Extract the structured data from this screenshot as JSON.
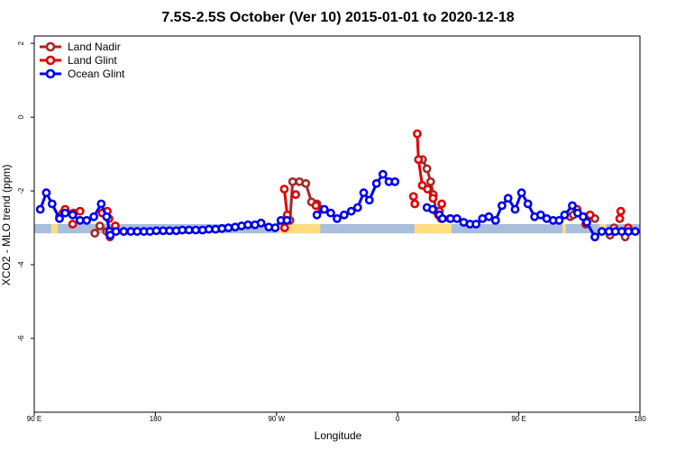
{
  "chart_data": {
    "type": "line",
    "title": "7.5S-2.5S October (Ver 10)   2015-01-01 to 2020-12-18",
    "xlabel": "Longitude",
    "ylabel": "XCO2 - MLO trend (ppm)",
    "xlim": [
      90,
      270
    ],
    "ylim": [
      -8.0,
      2.2
    ],
    "x_ticks": [
      {
        "value": 90,
        "label": "90 E"
      },
      {
        "value": 126,
        "label": "180"
      },
      {
        "value": 162,
        "label": "90 W"
      },
      {
        "value": 198,
        "label": "0"
      },
      {
        "value": 234,
        "label": "90 E"
      },
      {
        "value": 270,
        "label": "180"
      }
    ],
    "y_ticks": [
      {
        "value": 2,
        "label": "2"
      },
      {
        "value": 0,
        "label": "0"
      },
      {
        "value": -2,
        "label": "-2"
      },
      {
        "value": -4,
        "label": "-4"
      },
      {
        "value": -6,
        "label": "-6"
      }
    ],
    "legend_position": "top-left",
    "surface_band": {
      "y_top": -2.9,
      "y_bottom": -3.15,
      "ocean_color": "#a8bedb",
      "land_color": "#fedd83",
      "land_segments": [
        [
          95,
          97
        ],
        [
          162,
          175
        ],
        [
          203,
          214
        ],
        [
          247,
          248
        ],
        [
          258,
          260
        ]
      ]
    },
    "series": [
      {
        "name": "Land Nadir",
        "color": "#a52a2a",
        "segments": [
          [
            [
              97.5,
              -2.7
            ],
            [
              98.5,
              -2.6
            ]
          ],
          [
            [
              108,
              -3.15
            ],
            [
              109.5,
              -2.95
            ],
            [
              111.5,
              -3.1
            ],
            [
              112.5,
              -3.25
            ]
          ],
          [
            [
              166,
              -2.8
            ],
            [
              166.8,
              -1.75
            ]
          ],
          [
            [
              168.8,
              -1.75
            ],
            [
              170.7,
              -1.8
            ],
            [
              172.4,
              -2.3
            ],
            [
              174,
              -2.35
            ]
          ],
          [
            [
              205.4,
              -1.15
            ],
            [
              206.7,
              -1.4
            ],
            [
              207.8,
              -1.75
            ],
            [
              208.6,
              -2.1
            ],
            [
              209.4,
              -2.55
            ],
            [
              210.9,
              -2.75
            ],
            [
              213.5,
              -2.75
            ]
          ],
          [
            [
              249.3,
              -2.7
            ],
            [
              250.2,
              -2.65
            ]
          ],
          [
            [
              254.3,
              -2.7
            ],
            [
              256.6,
              -2.75
            ]
          ],
          [
            [
              261.1,
              -3.2
            ],
            [
              262.3,
              -3.0
            ]
          ],
          [
            [
              265.6,
              -3.25
            ],
            [
              266.6,
              -3.1
            ]
          ]
        ]
      },
      {
        "name": "Land Glint",
        "color": "#e00000",
        "segments": [
          [
            [
              99.2,
              -2.5
            ],
            [
              101.7,
              -2.6
            ],
            [
              103.6,
              -2.55
            ]
          ],
          [
            [
              101.4,
              -2.9
            ]
          ],
          [
            [
              110.2,
              -2.6
            ],
            [
              111.7,
              -2.55
            ],
            [
              112.2,
              -2.75
            ]
          ],
          [
            [
              114.1,
              -2.95
            ]
          ],
          [
            [
              164.3,
              -1.95
            ],
            [
              165.2,
              -2.65
            ],
            [
              164.4,
              -3.0
            ]
          ],
          [
            [
              167.7,
              -2.1
            ]
          ],
          [
            [
              173.7,
              -2.4
            ],
            [
              175.6,
              -2.5
            ]
          ],
          [
            [
              202.7,
              -2.15
            ],
            [
              203.1,
              -2.35
            ]
          ],
          [
            [
              203.8,
              -0.45
            ],
            [
              204.2,
              -1.15
            ],
            [
              205.3,
              -1.85
            ],
            [
              206.9,
              -1.95
            ],
            [
              208.5,
              -2.2
            ]
          ],
          [
            [
              211.1,
              -2.35
            ],
            [
              210.4,
              -2.55
            ],
            [
              210.1,
              -2.65
            ]
          ],
          [
            [
              251.3,
              -2.5
            ],
            [
              253.9,
              -2.9
            ]
          ],
          [
            [
              255.2,
              -2.65
            ]
          ],
          [
            [
              264.3,
              -2.55
            ],
            [
              264.0,
              -2.75
            ]
          ],
          [
            [
              266.5,
              -3.0
            ]
          ]
        ]
      },
      {
        "name": "Ocean Glint",
        "color": "#0000ee",
        "segments": [
          [
            [
              91.8,
              -2.5
            ],
            [
              93.6,
              -2.05
            ],
            [
              95.3,
              -2.35
            ],
            [
              97.5,
              -2.75
            ],
            [
              99.2,
              -2.6
            ],
            [
              101.4,
              -2.65
            ],
            [
              103.6,
              -2.8
            ],
            [
              105.6,
              -2.8
            ],
            [
              107.7,
              -2.7
            ],
            [
              109.9,
              -2.35
            ],
            [
              111.5,
              -2.7
            ],
            [
              112.4,
              -3.1
            ],
            [
              112.6,
              -3.2
            ],
            [
              114.3,
              -3.1
            ],
            [
              116.6,
              -3.1
            ],
            [
              118.7,
              -3.1
            ],
            [
              120.6,
              -3.1
            ],
            [
              122.6,
              -3.1
            ],
            [
              124.4,
              -3.1
            ],
            [
              126.3,
              -3.08
            ],
            [
              128.3,
              -3.08
            ],
            [
              130.2,
              -3.08
            ],
            [
              132.2,
              -3.08
            ],
            [
              134.0,
              -3.06
            ],
            [
              136.0,
              -3.06
            ],
            [
              138.0,
              -3.06
            ],
            [
              140.0,
              -3.06
            ],
            [
              141.9,
              -3.04
            ],
            [
              143.9,
              -3.04
            ],
            [
              145.8,
              -3.02
            ],
            [
              147.7,
              -3.0
            ],
            [
              149.7,
              -2.98
            ],
            [
              151.6,
              -2.95
            ],
            [
              153.5,
              -2.92
            ],
            [
              155.6,
              -2.92
            ],
            [
              157.4,
              -2.87
            ],
            [
              159.7,
              -2.98
            ],
            [
              161.6,
              -3.0
            ],
            [
              163.3,
              -2.8
            ],
            [
              165.1,
              -2.8
            ]
          ],
          [
            [
              174,
              -2.65
            ],
            [
              176.2,
              -2.5
            ],
            [
              178.1,
              -2.6
            ],
            [
              180.0,
              -2.75
            ],
            [
              182.1,
              -2.65
            ],
            [
              184.2,
              -2.55
            ],
            [
              186.1,
              -2.45
            ],
            [
              187.9,
              -2.05
            ],
            [
              189.6,
              -2.25
            ],
            [
              191.7,
              -1.8
            ],
            [
              193.6,
              -1.55
            ],
            [
              195.4,
              -1.75
            ],
            [
              197.2,
              -1.75
            ]
          ],
          [
            [
              206.7,
              -2.45
            ],
            [
              208.4,
              -2.5
            ],
            [
              210.4,
              -2.65
            ],
            [
              211.3,
              -2.75
            ],
            [
              213.7,
              -2.75
            ],
            [
              215.6,
              -2.75
            ],
            [
              217.6,
              -2.85
            ],
            [
              219.5,
              -2.9
            ],
            [
              221.3,
              -2.9
            ],
            [
              223.2,
              -2.75
            ],
            [
              225.1,
              -2.7
            ],
            [
              227.1,
              -2.8
            ],
            [
              229.0,
              -2.4
            ],
            [
              230.8,
              -2.2
            ],
            [
              232.9,
              -2.5
            ],
            [
              234.8,
              -2.05
            ],
            [
              236.7,
              -2.35
            ],
            [
              238.7,
              -2.7
            ],
            [
              240.5,
              -2.65
            ],
            [
              242.3,
              -2.75
            ],
            [
              244.2,
              -2.8
            ],
            [
              246.0,
              -2.8
            ],
            [
              247.6,
              -2.65
            ],
            [
              249.9,
              -2.4
            ],
            [
              251.5,
              -2.6
            ],
            [
              253.1,
              -2.7
            ],
            [
              254.2,
              -2.85
            ],
            [
              256.6,
              -3.25
            ],
            [
              258.7,
              -3.1
            ],
            [
              260.8,
              -3.1
            ],
            [
              262.7,
              -3.1
            ],
            [
              264.6,
              -3.1
            ],
            [
              266.6,
              -3.1
            ],
            [
              268.6,
              -3.1
            ]
          ]
        ]
      }
    ]
  }
}
